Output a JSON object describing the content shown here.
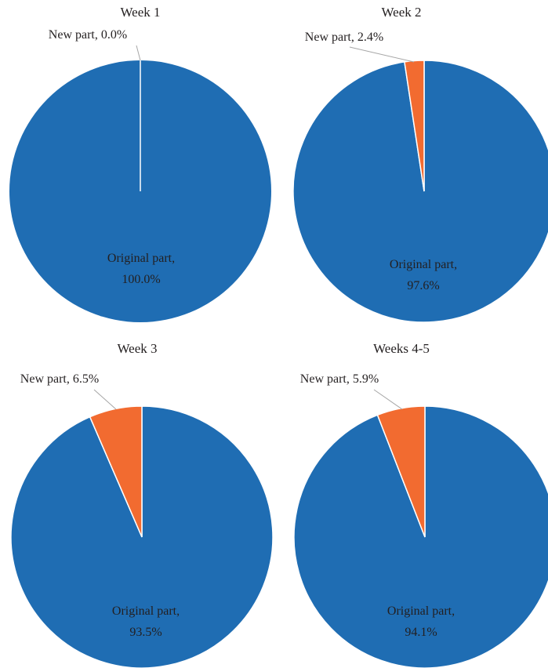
{
  "colors": {
    "original": "#1f6db3",
    "new": "#f26b30",
    "leader": "#a6a6a6",
    "text": "#231f20"
  },
  "chart_data": [
    {
      "type": "pie",
      "title": "Week 1",
      "slices": [
        {
          "name": "New part",
          "value": 0.0,
          "label_line1": "New part, 0.0%",
          "color_key": "new"
        },
        {
          "name": "Original part",
          "value": 100.0,
          "label_line1": "Original part,",
          "label_line2": "100.0%",
          "color_key": "original"
        }
      ]
    },
    {
      "type": "pie",
      "title": "Week 2",
      "slices": [
        {
          "name": "New part",
          "value": 2.4,
          "label_line1": "New part, 2.4%",
          "color_key": "new"
        },
        {
          "name": "Original part",
          "value": 97.6,
          "label_line1": "Original part,",
          "label_line2": "97.6%",
          "color_key": "original"
        }
      ]
    },
    {
      "type": "pie",
      "title": "Week 3",
      "slices": [
        {
          "name": "New part",
          "value": 6.5,
          "label_line1": "New part, 6.5%",
          "color_key": "new"
        },
        {
          "name": "Original part",
          "value": 93.5,
          "label_line1": "Original part,",
          "label_line2": "93.5%",
          "color_key": "original"
        }
      ]
    },
    {
      "type": "pie",
      "title": "Weeks 4-5",
      "slices": [
        {
          "name": "New part",
          "value": 5.9,
          "label_line1": "New part, 5.9%",
          "color_key": "new"
        },
        {
          "name": "Original part",
          "value": 94.1,
          "label_line1": "Original part,",
          "label_line2": "94.1%",
          "color_key": "original"
        }
      ]
    }
  ]
}
